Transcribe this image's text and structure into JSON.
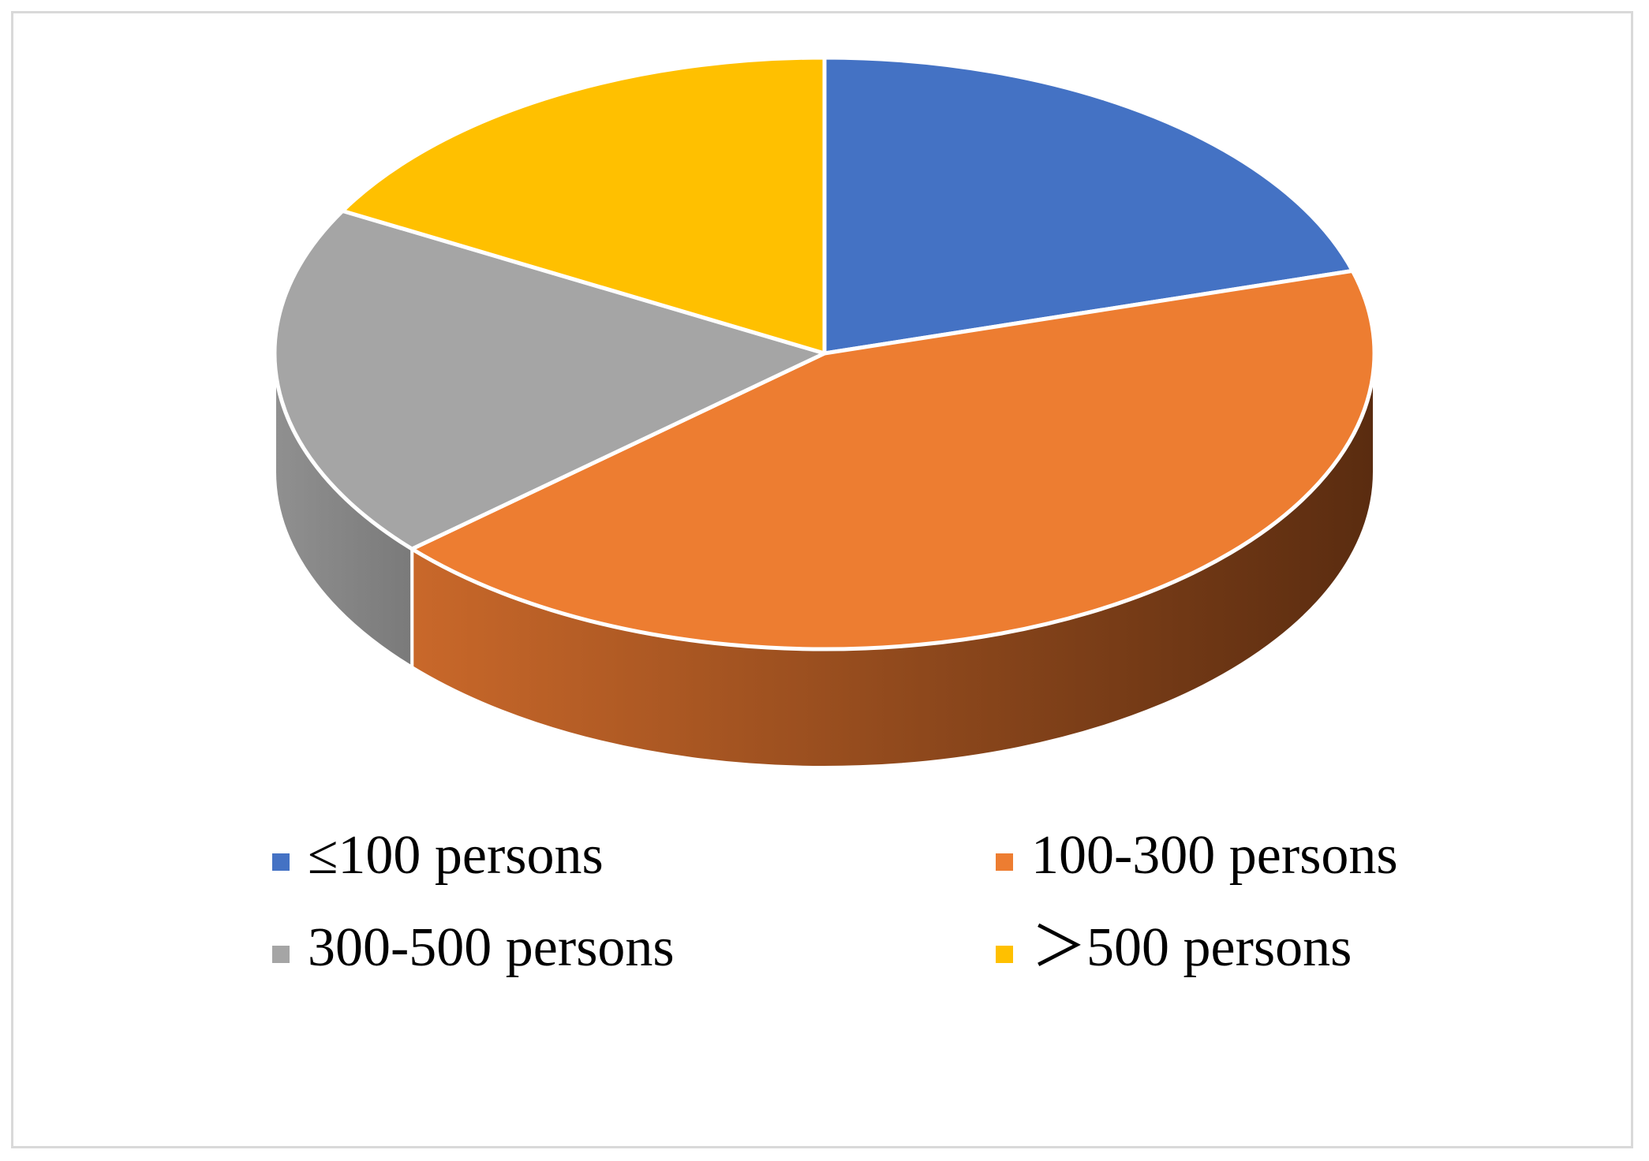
{
  "chart_data": {
    "type": "pie",
    "style": "3d",
    "title": "",
    "slices": [
      {
        "label": "≤100 persons",
        "value": 20.5,
        "color": "#4472C4"
      },
      {
        "label": "100-300 persons",
        "value": 43.0,
        "color": "#ED7D31"
      },
      {
        "label": "300-500 persons",
        "value": 19.5,
        "color": "#A5A5A5"
      },
      {
        "label": "＞500 persons",
        "value": 17.0,
        "color": "#FFC000"
      }
    ],
    "legend_position": "bottom"
  }
}
